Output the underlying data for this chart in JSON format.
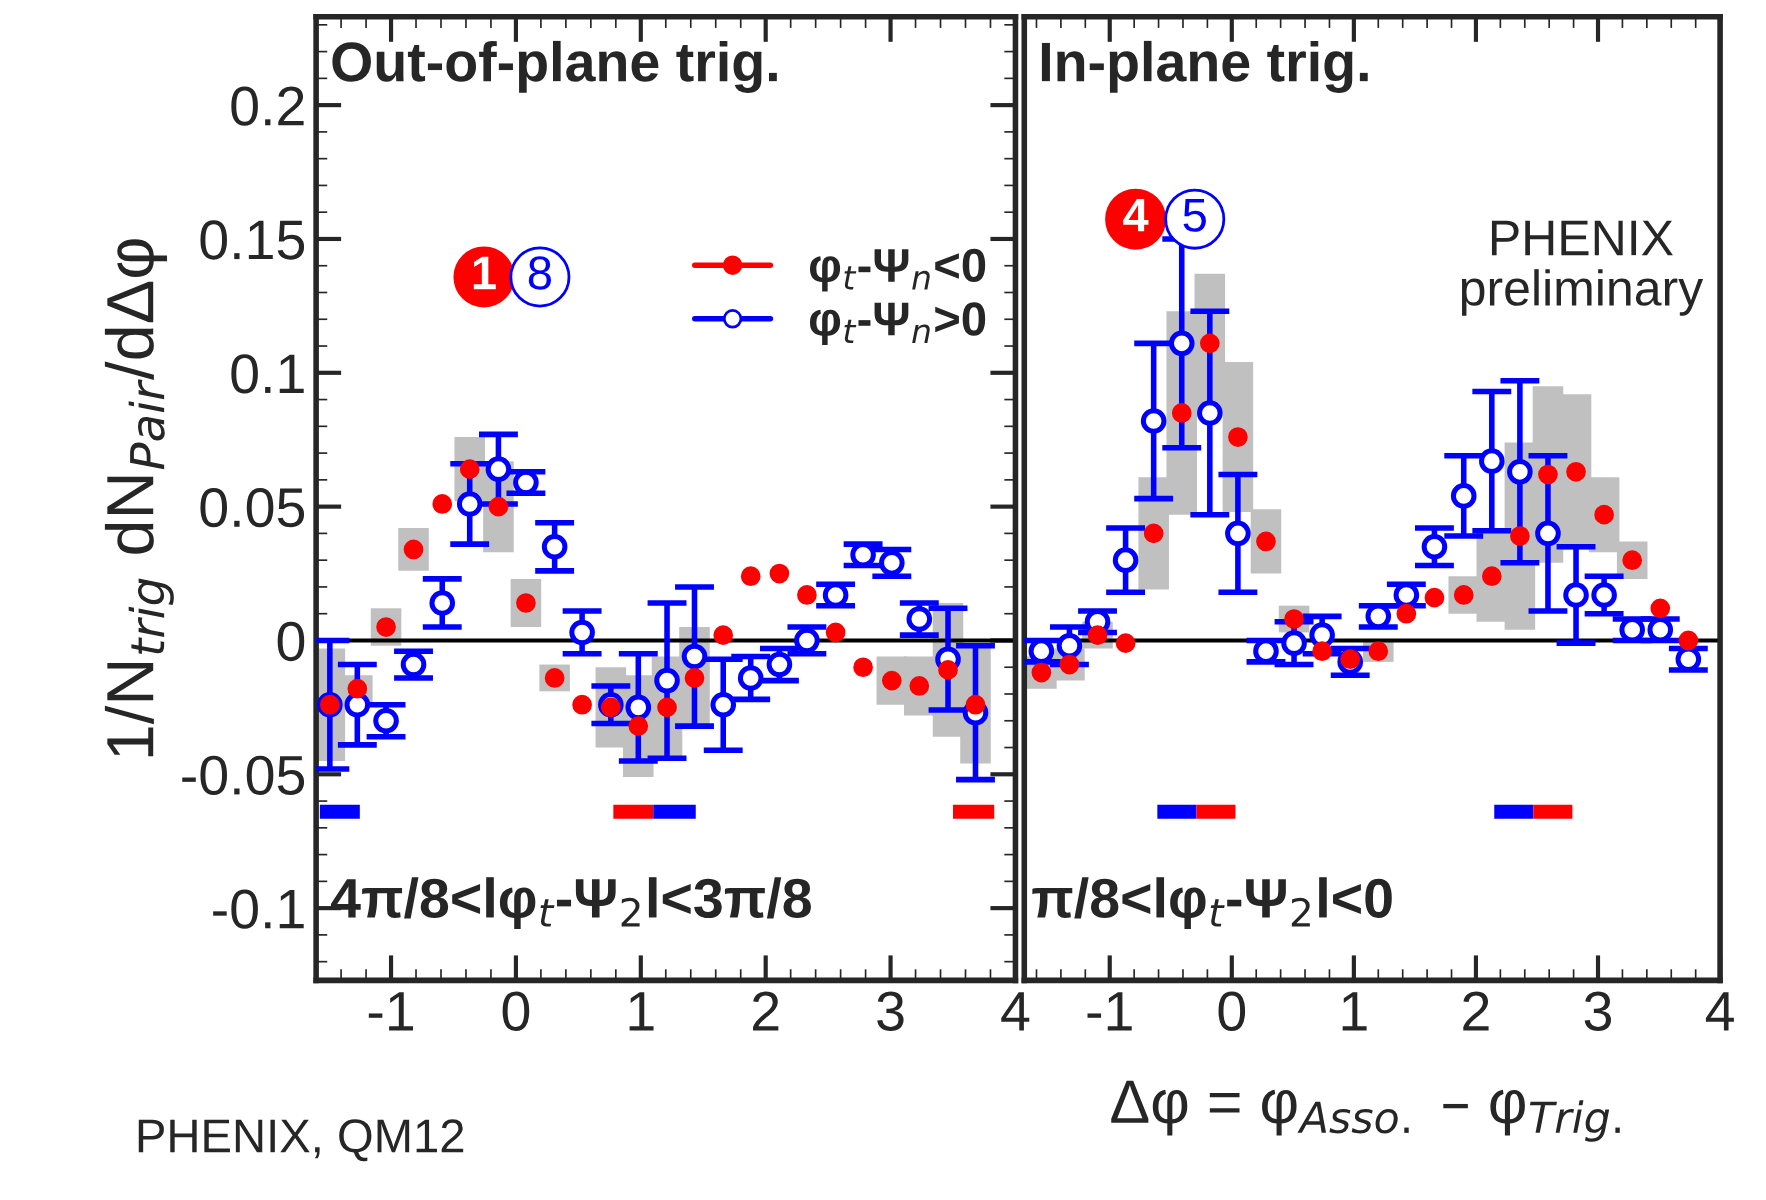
{
  "chart_data": [
    {
      "type": "scatter",
      "title": "Out-of-plane trig.",
      "ylabel": "1/N$_{trig}$ dN$_{Pair}$/dΔφ",
      "xlim": [
        -1.6,
        4
      ],
      "xticks": [
        -1,
        0,
        1,
        2,
        3,
        4
      ],
      "ylim": [
        -0.127,
        0.233
      ],
      "yticks": [
        -0.1,
        -0.05,
        0,
        0.05,
        0.1,
        0.15,
        0.2
      ],
      "legend": "top right",
      "marker": "circle",
      "tick_labels": "xy",
      "ref_lines": [
        {
          "axis": "y",
          "value": 0,
          "color": "#000000"
        }
      ],
      "annotations": [
        "4π/8<lφ$_{t}$-Ψ$_{2}$l<3π/8",
        "1",
        "8",
        "PHENIX, QM12"
      ],
      "series": [
        {
          "name": "φ$_{t}$-Ψ$_{n}$<0",
          "color": "#ff0000",
          "x": [
            -1.49,
            -1.27,
            -1.04,
            -0.82,
            -0.59,
            -0.37,
            -0.14,
            0.08,
            0.31,
            0.53,
            0.76,
            0.98,
            1.21,
            1.43,
            1.66,
            1.88,
            2.11,
            2.33,
            2.56,
            2.78,
            3.01,
            3.23,
            3.46,
            3.68
          ],
          "values": [
            -0.024,
            -0.018,
            0.005,
            0.034,
            0.051,
            0.064,
            0.05,
            0.014,
            -0.014,
            -0.024,
            -0.025,
            -0.032,
            -0.025,
            -0.014,
            0.002,
            0.024,
            0.025,
            0.017,
            0.003,
            -0.01,
            -0.015,
            -0.017,
            -0.011,
            -0.024
          ],
          "errors": [
            0.021,
            0.005,
            0.007,
            0.008,
            null,
            0.012,
            0.017,
            0.009,
            0.005,
            null,
            0.015,
            0.019,
            0.019,
            0.019,
            null,
            null,
            null,
            null,
            null,
            null,
            0.009,
            0.011,
            0.025,
            0.022
          ]
        },
        {
          "name": "φ$_{t}$-Ψ$_{n}$>0",
          "color": "#0000ff",
          "x": [
            -1.49,
            -1.27,
            -1.04,
            -0.82,
            -0.59,
            -0.37,
            -0.14,
            0.08,
            0.31,
            0.53,
            0.76,
            0.98,
            1.21,
            1.43,
            1.66,
            1.88,
            2.11,
            2.33,
            2.56,
            2.78,
            3.01,
            3.23,
            3.46,
            3.68
          ],
          "values": [
            -0.024,
            -0.024,
            -0.03,
            -0.009,
            0.014,
            0.051,
            0.064,
            0.059,
            0.035,
            0.003,
            -0.024,
            -0.025,
            -0.015,
            -0.006,
            -0.024,
            -0.014,
            -0.009,
            0.0,
            0.017,
            0.032,
            0.029,
            0.008,
            -0.007,
            -0.027
          ],
          "errors": [
            0.024,
            0.015,
            0.006,
            0.005,
            0.009,
            0.015,
            0.013,
            0.004,
            0.009,
            0.008,
            0.007,
            0.02,
            0.029,
            0.026,
            0.017,
            0.008,
            0.006,
            0.005,
            0.004,
            0.004,
            0.005,
            0.006,
            0.019,
            0.025
          ]
        },
        {
          "type": "line",
          "marker": "none",
          "color": "#0000ff",
          "x": [
            -1.57,
            -1.25
          ],
          "values": [
            -0.064,
            -0.064
          ]
        },
        {
          "type": "line",
          "marker": "none",
          "color": "#ff0000",
          "x": [
            0.78,
            1.1
          ],
          "values": [
            -0.064,
            -0.064
          ]
        },
        {
          "type": "line",
          "marker": "none",
          "color": "#0000ff",
          "x": [
            1.1,
            1.44
          ],
          "values": [
            -0.064,
            -0.064
          ]
        },
        {
          "type": "line",
          "marker": "none",
          "color": "#ff0000",
          "x": [
            3.5,
            3.83
          ],
          "values": [
            -0.064,
            -0.064
          ]
        }
      ]
    },
    {
      "type": "scatter",
      "title": "In-plane trig.",
      "xlabel": "Δφ = φ$_{Asso.}$ – φ$_{Trig.}$",
      "xlim": [
        -1.7,
        4
      ],
      "xticks": [
        -1,
        0,
        1,
        2,
        3,
        4
      ],
      "ylim": [
        -0.127,
        0.233
      ],
      "marker": "circle",
      "tick_labels": "x",
      "ref_lines": [
        {
          "axis": "y",
          "value": 0,
          "color": "#000000"
        }
      ],
      "annotations": [
        "π/8<lφ$_{t}$-Ψ$_{2}$l<0",
        "4",
        "5",
        "PHENIX\npreliminary"
      ],
      "series": [
        {
          "color": "#ff0000",
          "x": [
            -1.56,
            -1.33,
            -1.1,
            -0.87,
            -0.64,
            -0.41,
            -0.18,
            0.05,
            0.28,
            0.51,
            0.74,
            0.97,
            1.2,
            1.43,
            1.66,
            1.9,
            2.13,
            2.36,
            2.59,
            2.82,
            3.05,
            3.28,
            3.51,
            3.74
          ],
          "values": [
            -0.012,
            -0.009,
            0.002,
            -0.001,
            0.04,
            0.085,
            0.111,
            0.076,
            0.037,
            0.008,
            -0.004,
            -0.007,
            -0.004,
            0.01,
            0.016,
            0.017,
            0.024,
            0.039,
            0.062,
            0.063,
            0.047,
            0.03,
            0.012,
            0.0
          ],
          "errors": [
            0.006,
            0.006,
            0.005,
            null,
            0.021,
            0.038,
            0.026,
            0.028,
            0.012,
            0.005,
            null,
            null,
            0.004,
            null,
            null,
            0.007,
            0.017,
            0.035,
            0.033,
            0.029,
            0.014,
            0.007,
            null,
            null
          ]
        },
        {
          "color": "#0000ff",
          "x": [
            -1.56,
            -1.33,
            -1.1,
            -0.87,
            -0.64,
            -0.41,
            -0.18,
            0.05,
            0.28,
            0.51,
            0.74,
            0.97,
            1.2,
            1.43,
            1.66,
            1.9,
            2.13,
            2.36,
            2.59,
            2.82,
            3.05,
            3.28,
            3.51,
            3.74
          ],
          "values": [
            -0.004,
            -0.002,
            0.007,
            0.03,
            0.082,
            0.111,
            0.085,
            0.04,
            -0.004,
            -0.001,
            0.002,
            -0.008,
            0.009,
            0.017,
            0.035,
            0.054,
            0.067,
            0.063,
            0.04,
            0.017,
            0.017,
            0.004,
            0.004,
            -0.007
          ],
          "errors": [
            0.004,
            0.007,
            0.004,
            0.012,
            0.029,
            0.039,
            0.038,
            0.022,
            0.004,
            0.008,
            0.007,
            0.005,
            0.004,
            0.004,
            0.007,
            0.015,
            0.026,
            0.034,
            0.029,
            0.018,
            0.007,
            0.004,
            0.004,
            0.004
          ]
        },
        {
          "type": "line",
          "marker": "none",
          "color": "#0000ff",
          "x": [
            -0.61,
            -0.29
          ],
          "values": [
            -0.064,
            -0.064
          ]
        },
        {
          "type": "line",
          "marker": "none",
          "color": "#ff0000",
          "x": [
            -0.29,
            0.03
          ],
          "values": [
            -0.064,
            -0.064
          ]
        },
        {
          "type": "line",
          "marker": "none",
          "color": "#0000ff",
          "x": [
            2.15,
            2.47
          ],
          "values": [
            -0.064,
            -0.064
          ]
        },
        {
          "type": "line",
          "marker": "none",
          "color": "#ff0000",
          "x": [
            2.47,
            2.79
          ],
          "values": [
            -0.064,
            -0.064
          ]
        }
      ]
    }
  ]
}
